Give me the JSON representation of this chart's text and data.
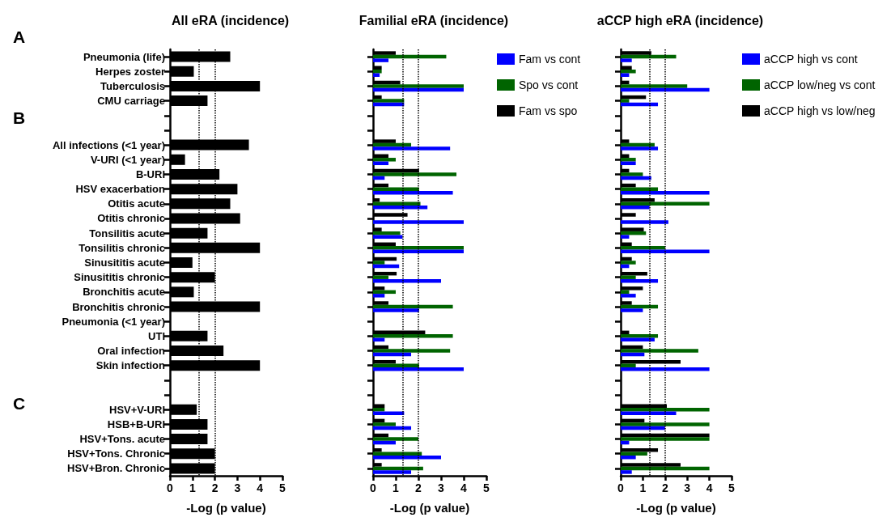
{
  "chart_data": [
    {
      "type": "bar",
      "orientation": "horizontal",
      "title": "All eRA (incidence)",
      "xlabel": "-Log (p value)",
      "annotations": [
        "A",
        "B",
        "C"
      ],
      "categories": [
        "Pneumonia (life)",
        "Herpes zoster",
        "Tuberculosis",
        "CMU carriage",
        null,
        null,
        "All infections (<1 year)",
        "V-URI (<1 year)",
        "B-URI",
        "HSV exacerbation",
        "Otitis acute",
        "Otitis chronic",
        "Tonsilitis acute",
        "Tonsilitis chronic",
        "Sinusititis acute",
        "Sinusititis chronic",
        "Bronchitis acute",
        "Bronchitis chronic",
        "Pneumonia (<1 year)",
        "UTI",
        "Oral infection",
        "Skin infection",
        null,
        null,
        "HSV+V-URI",
        "HSB+B-URI",
        "HSV+Tons. acute",
        "HSV+Tons. Chronic",
        "HSV+Bron. Chronic"
      ],
      "values": [
        2.68,
        1.06,
        4,
        1.67,
        null,
        null,
        3.51,
        0.67,
        2.2,
        3,
        2.68,
        3.12,
        1.67,
        4,
        1,
        2,
        1.06,
        4,
        null,
        1.67,
        2.38,
        4,
        null,
        null,
        1.19,
        1.67,
        1.67,
        2,
        2
      ],
      "color": "#000000",
      "xlim": [
        0,
        5
      ],
      "xticks": [
        0,
        1,
        2,
        3,
        4,
        5
      ],
      "grid": false,
      "legend": false,
      "ref_lines": [
        {
          "axis": "x",
          "value": 1.3,
          "color": "#000000",
          "line_style": "dotted"
        },
        {
          "axis": "x",
          "value": 2,
          "color": "#000000",
          "line_style": "dotted"
        }
      ]
    },
    {
      "type": "bar",
      "orientation": "horizontal",
      "title": "Familial eRA (incidence)",
      "xlabel": "-Log (p value)",
      "tick_labels": "x",
      "categories": [
        null,
        null,
        null,
        null,
        null,
        null,
        null,
        null,
        null,
        null,
        null,
        null,
        null,
        null,
        null,
        null,
        null,
        null,
        null,
        null,
        null,
        null,
        null,
        null,
        null,
        null,
        null,
        null,
        null
      ],
      "series": [
        {
          "name": "Fam vs cont",
          "color": "#0000ff",
          "values": [
            0.68,
            0.29,
            4,
            1.37,
            null,
            null,
            3.4,
            0.68,
            0.51,
            3.52,
            2.4,
            4,
            1.3,
            4,
            1.15,
            3,
            0.51,
            2.03,
            null,
            0.51,
            1.68,
            4,
            null,
            null,
            1.37,
            1.68,
            1,
            3,
            1.68
          ]
        },
        {
          "name": "Spo vs cont",
          "color": "#006400",
          "values": [
            3.23,
            0.38,
            4,
            1.37,
            null,
            null,
            1.68,
            1,
            3.68,
            2.03,
            2.09,
            null,
            1.2,
            4,
            0.51,
            0.68,
            1,
            3.52,
            null,
            3.52,
            3.4,
            2.03,
            null,
            null,
            0.51,
            1,
            2,
            2.15,
            2.21
          ]
        },
        {
          "name": "Fam vs spo",
          "color": "#000000",
          "values": [
            1,
            0.38,
            1.2,
            0.38,
            null,
            null,
            1,
            0.68,
            2.03,
            0.68,
            0.29,
            1.52,
            0.38,
            1,
            1.04,
            1.04,
            0.51,
            0.68,
            null,
            2.3,
            0.68,
            1,
            null,
            null,
            0.51,
            0.51,
            0.68,
            0.38,
            0.38
          ]
        }
      ],
      "xlim": [
        0,
        5
      ],
      "xticks": [
        0,
        1,
        2,
        3,
        4,
        5
      ],
      "grid": false,
      "legend": "right",
      "ref_lines": [
        {
          "axis": "x",
          "value": 1.3,
          "color": "#000000",
          "line_style": "dotted"
        },
        {
          "axis": "x",
          "value": 2,
          "color": "#000000",
          "line_style": "dotted"
        }
      ]
    },
    {
      "type": "bar",
      "orientation": "horizontal",
      "title": "aCCP high eRA (incidence)",
      "xlabel": "-Log (p value)",
      "tick_labels": "x",
      "categories": [
        null,
        null,
        null,
        null,
        null,
        null,
        null,
        null,
        null,
        null,
        null,
        null,
        null,
        null,
        null,
        null,
        null,
        null,
        null,
        null,
        null,
        null,
        null,
        null,
        null,
        null,
        null,
        null,
        null
      ],
      "series": [
        {
          "name": "aCCP high vs cont",
          "color": "#0000ff",
          "values": [
            0.5,
            0.38,
            4,
            1.68,
            null,
            null,
            1.68,
            0.68,
            1.38,
            4,
            1.3,
            2.15,
            0.38,
            4,
            0.38,
            1.68,
            0.68,
            1,
            null,
            1.53,
            1.07,
            4,
            null,
            null,
            2.5,
            2,
            0.38,
            0.68,
            0.5
          ]
        },
        {
          "name": "aCCP low/neg vs cont",
          "color": "#006400",
          "values": [
            2.5,
            0.68,
            3,
            0.38,
            null,
            null,
            1.53,
            0.68,
            1,
            1.68,
            4,
            null,
            1.14,
            2,
            0.68,
            0.68,
            0.38,
            1.68,
            null,
            1.68,
            3.5,
            0.68,
            null,
            null,
            4,
            4,
            4,
            1.2,
            4
          ]
        },
        {
          "name": "aCCP high vs low/neg",
          "color": "#000000",
          "values": [
            1.38,
            0.5,
            0.38,
            1.14,
            null,
            null,
            0.38,
            0.38,
            0.38,
            0.68,
            1.53,
            0.68,
            1.04,
            0.5,
            0.5,
            1.2,
            1,
            0.5,
            null,
            0.38,
            1,
            2.7,
            null,
            null,
            2.08,
            1.07,
            4,
            1.68,
            2.7
          ]
        }
      ],
      "xlim": [
        0,
        5
      ],
      "xticks": [
        0,
        1,
        2,
        3,
        4,
        5
      ],
      "grid": false,
      "legend": "right",
      "ref_lines": [
        {
          "axis": "x",
          "value": 1.3,
          "color": "#000000",
          "line_style": "dotted"
        },
        {
          "axis": "x",
          "value": 2,
          "color": "#000000",
          "line_style": "dotted"
        }
      ]
    }
  ]
}
